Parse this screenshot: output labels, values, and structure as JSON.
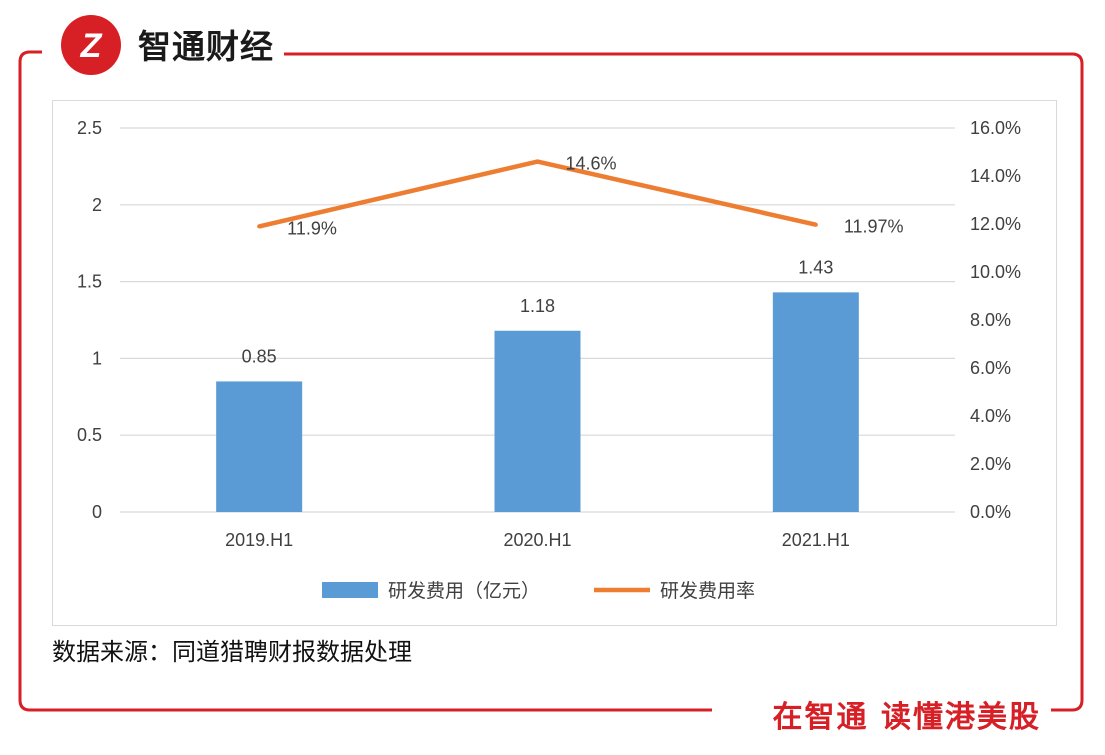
{
  "brand": {
    "name": "智通财经",
    "logo_text": "Z"
  },
  "source_note": "数据来源：同道猎聘财报数据处理",
  "slogan": "在智通 读懂港美股",
  "colors": {
    "red": "#d71f26",
    "bar": "#5b9bd5",
    "line": "#ed7d31",
    "grid": "#d9d9d9"
  },
  "chart_data": {
    "type": "bar",
    "categories": [
      "2019.H1",
      "2020.H1",
      "2021.H1"
    ],
    "series": [
      {
        "name": "研发费用（亿元）",
        "type": "bar",
        "axis": "left",
        "values": [
          0.85,
          1.18,
          1.43
        ],
        "labels": [
          "0.85",
          "1.18",
          "1.43"
        ]
      },
      {
        "name": "研发费用率",
        "type": "line",
        "axis": "right",
        "values": [
          11.9,
          14.6,
          11.97
        ],
        "labels": [
          "11.9%",
          "14.6%",
          "11.97%"
        ]
      }
    ],
    "y_left": {
      "min": 0,
      "max": 2.5,
      "ticks": [
        "0",
        "0.5",
        "1",
        "1.5",
        "2",
        "2.5"
      ]
    },
    "y_right": {
      "min": 0,
      "max": 16,
      "ticks": [
        "0.0%",
        "2.0%",
        "4.0%",
        "6.0%",
        "8.0%",
        "10.0%",
        "12.0%",
        "14.0%",
        "16.0%"
      ]
    },
    "grid": true,
    "legend_position": "bottom"
  }
}
